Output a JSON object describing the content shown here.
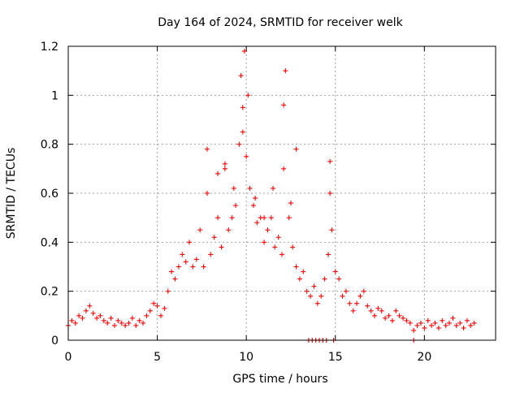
{
  "chart_data": {
    "type": "scatter",
    "title": "Day 164 of 2024, SRMTID for receiver welk",
    "xlabel": "GPS time / hours",
    "ylabel": "SRMTID / TECUs",
    "xlim": [
      0,
      24
    ],
    "ylim": [
      0,
      1.2
    ],
    "xticks": [
      0,
      5,
      10,
      15,
      20
    ],
    "yticks": [
      0,
      0.2,
      0.4,
      0.6,
      0.8,
      1,
      1.2
    ],
    "xtick_labels": [
      "0",
      "5",
      "10",
      "15",
      "20"
    ],
    "ytick_labels": [
      "0",
      "0.2",
      "0.4",
      "0.6",
      "0.8",
      "1",
      "1.2"
    ],
    "grid": true,
    "marker": "plus",
    "color": "#ff0000",
    "series": [
      {
        "name": "SRMTID",
        "x": [
          0.0,
          0.2,
          0.4,
          0.6,
          0.8,
          1.0,
          1.2,
          1.4,
          1.6,
          1.8,
          2.0,
          2.2,
          2.4,
          2.6,
          2.8,
          3.0,
          3.2,
          3.4,
          3.6,
          3.8,
          4.0,
          4.2,
          4.4,
          4.6,
          4.8,
          5.0,
          5.2,
          5.4,
          5.6,
          5.8,
          6.0,
          6.2,
          6.4,
          6.6,
          6.8,
          7.0,
          7.2,
          7.4,
          7.6,
          7.8,
          8.0,
          8.2,
          8.4,
          8.6,
          8.8,
          9.0,
          9.2,
          9.4,
          9.6,
          9.7,
          9.8,
          9.9,
          10.0,
          10.2,
          10.4,
          10.6,
          10.8,
          11.0,
          11.2,
          11.4,
          11.6,
          11.8,
          12.0,
          12.1,
          12.2,
          12.4,
          12.6,
          12.8,
          13.0,
          13.2,
          13.4,
          13.6,
          13.8,
          14.0,
          14.2,
          14.4,
          14.6,
          14.7,
          14.8,
          15.0,
          15.2,
          15.4,
          15.6,
          15.8,
          16.0,
          16.2,
          16.4,
          16.6,
          16.8,
          17.0,
          17.2,
          17.4,
          17.6,
          17.8,
          18.0,
          18.2,
          18.4,
          18.6,
          18.8,
          19.0,
          19.2,
          19.4,
          19.6,
          19.8,
          20.0,
          20.2,
          20.4,
          20.6,
          20.8,
          21.0,
          21.2,
          21.4,
          21.6,
          21.8,
          22.0,
          22.2,
          22.4,
          22.6,
          22.8,
          13.5,
          13.7,
          13.9,
          14.1,
          14.3,
          14.5,
          14.9,
          19.4,
          7.8,
          8.4,
          8.8,
          9.3,
          9.8,
          10.1,
          10.5,
          11.0,
          11.5,
          12.1,
          12.5,
          12.8,
          14.7
        ],
        "y": [
          0.06,
          0.08,
          0.07,
          0.1,
          0.09,
          0.12,
          0.14,
          0.11,
          0.09,
          0.1,
          0.08,
          0.07,
          0.09,
          0.06,
          0.08,
          0.07,
          0.06,
          0.07,
          0.09,
          0.06,
          0.08,
          0.07,
          0.1,
          0.12,
          0.15,
          0.14,
          0.1,
          0.13,
          0.2,
          0.28,
          0.25,
          0.3,
          0.35,
          0.32,
          0.4,
          0.3,
          0.33,
          0.45,
          0.3,
          0.6,
          0.35,
          0.42,
          0.5,
          0.38,
          0.7,
          0.45,
          0.5,
          0.55,
          0.8,
          1.08,
          0.95,
          1.18,
          0.75,
          0.62,
          0.55,
          0.48,
          0.5,
          0.4,
          0.45,
          0.5,
          0.38,
          0.42,
          0.35,
          0.7,
          1.1,
          0.5,
          0.38,
          0.3,
          0.25,
          0.28,
          0.2,
          0.18,
          0.22,
          0.15,
          0.18,
          0.25,
          0.35,
          0.73,
          0.45,
          0.28,
          0.25,
          0.18,
          0.2,
          0.15,
          0.12,
          0.15,
          0.18,
          0.2,
          0.14,
          0.12,
          0.1,
          0.13,
          0.12,
          0.09,
          0.1,
          0.08,
          0.12,
          0.1,
          0.09,
          0.08,
          0.07,
          0.04,
          0.06,
          0.07,
          0.05,
          0.08,
          0.06,
          0.07,
          0.05,
          0.08,
          0.06,
          0.07,
          0.09,
          0.06,
          0.07,
          0.05,
          0.08,
          0.06,
          0.07,
          0.0,
          0.0,
          0.0,
          0.0,
          0.0,
          0.0,
          0.0,
          0.0,
          0.78,
          0.68,
          0.72,
          0.62,
          0.85,
          1.0,
          0.58,
          0.5,
          0.62,
          0.96,
          0.56,
          0.78,
          0.6
        ]
      }
    ]
  }
}
